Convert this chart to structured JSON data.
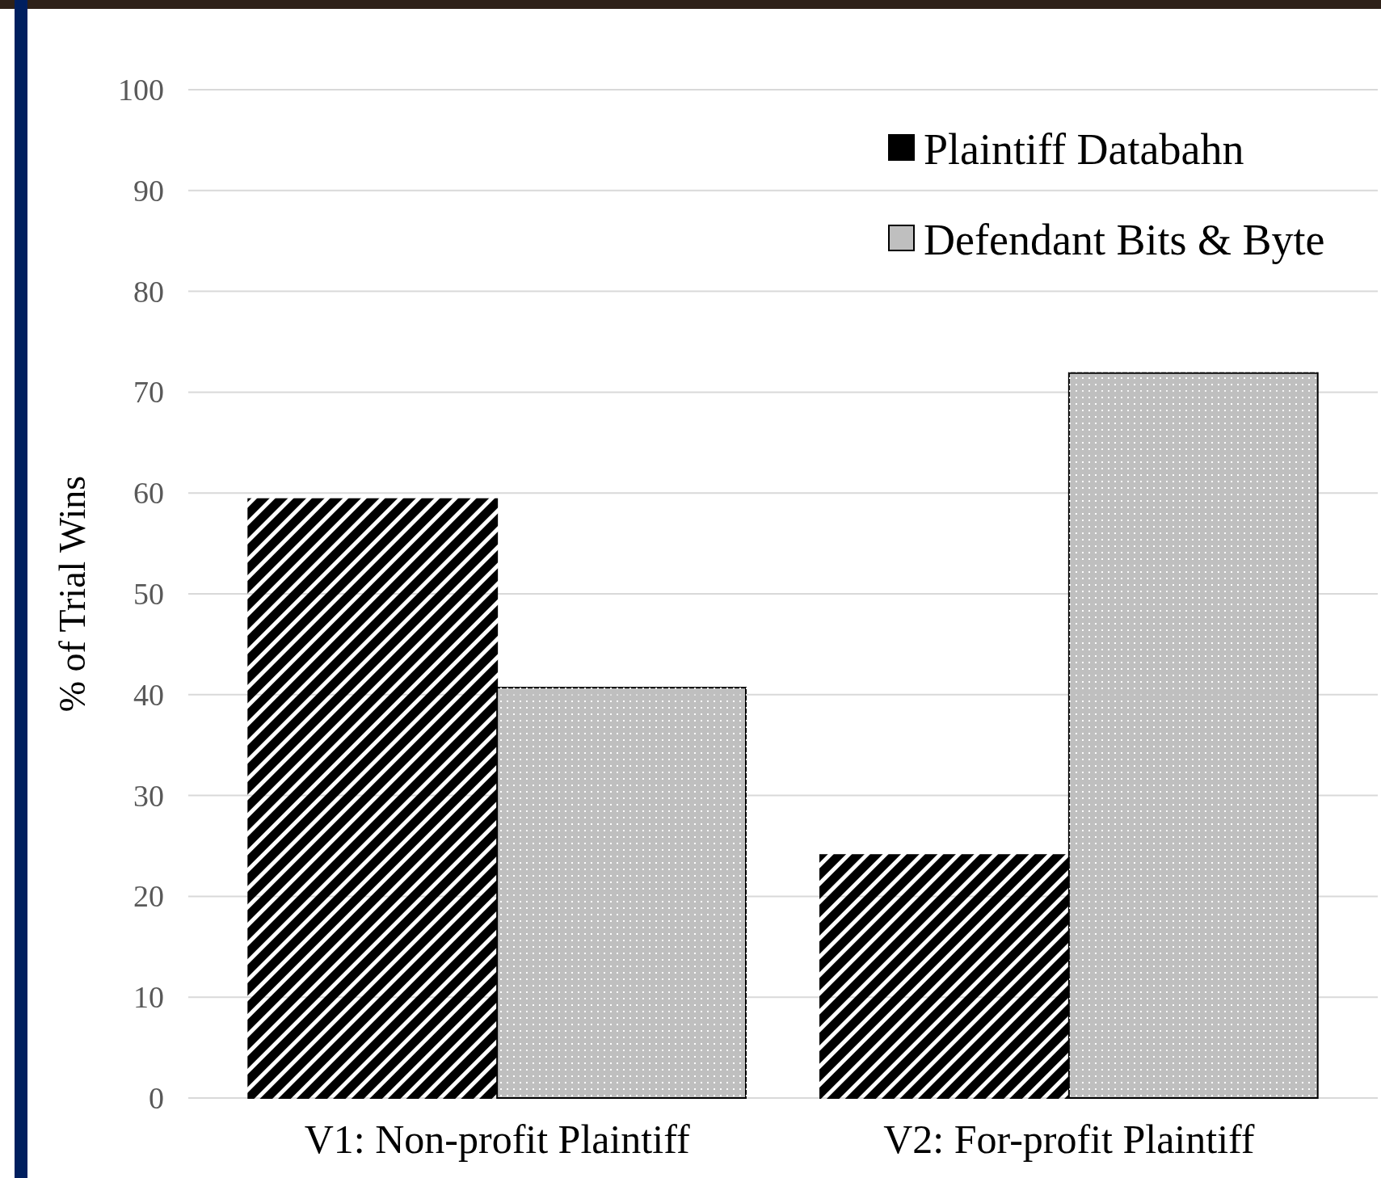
{
  "chart_data": {
    "type": "bar",
    "ylabel": "% of Trial Wins",
    "categories": [
      "V1: Non-profit Plaintiff",
      "V2: For-profit Plaintiff"
    ],
    "series": [
      {
        "name": "Plaintiff Databahn",
        "color": "#000000",
        "values": [
          59.4,
          24.1
        ]
      },
      {
        "name": "Defendant Bits & Byte",
        "color": "#bfbfbf",
        "values": [
          40.7,
          71.9
        ]
      }
    ],
    "ylim": [
      0,
      100
    ],
    "yticks": [
      0,
      10,
      20,
      30,
      40,
      50,
      60,
      70,
      80,
      90,
      100
    ],
    "grid": "y",
    "legend": "top right"
  }
}
